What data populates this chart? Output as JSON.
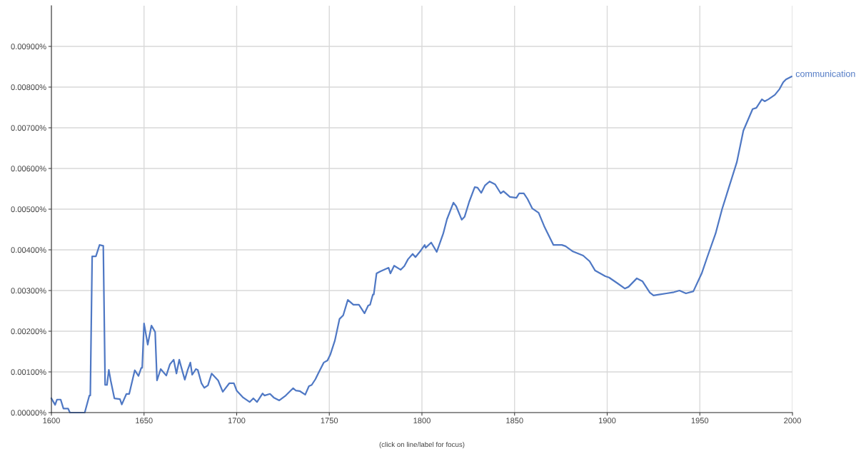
{
  "chart_data": {
    "type": "line",
    "annotations": [
      "(click on line/label for focus)"
    ],
    "xlim": [
      1600,
      2000
    ],
    "xticks": [
      1600,
      1650,
      1700,
      1750,
      1800,
      1850,
      1900,
      1950,
      2000
    ],
    "ylim": [
      0,
      0.01
    ],
    "yticks": [
      {
        "value": 0,
        "label": "0.00000%"
      },
      {
        "value": 0.001,
        "label": "0.00100%"
      },
      {
        "value": 0.002,
        "label": "0.00200%"
      },
      {
        "value": 0.003,
        "label": "0.00300%"
      },
      {
        "value": 0.004,
        "label": "0.00400%"
      },
      {
        "value": 0.005,
        "label": "0.00500%"
      },
      {
        "value": 0.006,
        "label": "0.00600%"
      },
      {
        "value": 0.007,
        "label": "0.00700%"
      },
      {
        "value": 0.008,
        "label": "0.00800%"
      },
      {
        "value": 0.009,
        "label": "0.00900%"
      }
    ],
    "grid": true,
    "legend": false,
    "marker": "none",
    "line_style": "solid",
    "series": [
      {
        "name": "communication",
        "color": "#4f78c4",
        "x": [
          1600,
          1602,
          1603,
          1605,
          1606.5,
          1609,
          1610,
          1618,
          1620.5,
          1621,
          1622,
          1624,
          1626,
          1628,
          1629,
          1630,
          1631,
          1632,
          1634,
          1637,
          1638,
          1640.5,
          1642,
          1645,
          1647,
          1648.5,
          1649,
          1650,
          1652,
          1654,
          1656,
          1657,
          1659,
          1662,
          1664,
          1666,
          1667.5,
          1669,
          1670.5,
          1672,
          1673.5,
          1675,
          1676,
          1678,
          1679,
          1681,
          1682.5,
          1684.5,
          1686.5,
          1690,
          1692.5,
          1696,
          1698.5,
          1700,
          1703.5,
          1707,
          1709,
          1711,
          1714,
          1715,
          1718,
          1720,
          1723,
          1726.5,
          1730.5,
          1732,
          1734,
          1737,
          1739,
          1740.5,
          1742.5,
          1744,
          1747,
          1749,
          1750.5,
          1753,
          1755.5,
          1757.5,
          1760,
          1763,
          1766,
          1769,
          1771,
          1772,
          1773.5,
          1774,
          1775.5,
          1777.5,
          1782,
          1783,
          1785,
          1788.5,
          1790.5,
          1792.5,
          1795,
          1796.5,
          1799,
          1801.5,
          1802,
          1805,
          1808,
          1811.5,
          1813.5,
          1817,
          1818.5,
          1821.5,
          1823,
          1825.5,
          1828.5,
          1830,
          1832,
          1834,
          1836.5,
          1839.5,
          1842.5,
          1844,
          1847.5,
          1851,
          1852.5,
          1855,
          1857,
          1859.5,
          1863,
          1866,
          1871,
          1875.5,
          1877.5,
          1881.5,
          1887,
          1890.5,
          1893.5,
          1899,
          1901,
          1905.5,
          1909.5,
          1911.5,
          1916,
          1919,
          1923,
          1925,
          1928,
          1932,
          1936,
          1939,
          1942.5,
          1946.5,
          1951,
          1954,
          1958.5,
          1962,
          1966,
          1970,
          1973.5,
          1978.5,
          1980.5,
          1983.5,
          1985,
          1987,
          1990.5,
          1993,
          1995,
          1996.5,
          1999.5
        ],
        "values": [
          0.00035,
          0.00019,
          0.00032,
          0.00032,
          0.0001,
          0.0001,
          0,
          0,
          0.00042,
          0.00042,
          0.00384,
          0.00384,
          0.00412,
          0.0041,
          0.00068,
          0.00068,
          0.00105,
          0.00079,
          0.00035,
          0.00033,
          0.0002,
          0.00046,
          0.00046,
          0.00104,
          0.0009,
          0.0011,
          0.0011,
          0.00219,
          0.00167,
          0.00214,
          0.00198,
          0.00079,
          0.00107,
          0.00091,
          0.00119,
          0.0013,
          0.00096,
          0.0013,
          0.00105,
          0.00081,
          0.00104,
          0.00123,
          0.00093,
          0.00107,
          0.00105,
          0.00072,
          0.00061,
          0.00067,
          0.00096,
          0.00079,
          0.00051,
          0.00072,
          0.00072,
          0.00054,
          0.00037,
          0.00026,
          0.00035,
          0.00026,
          0.00047,
          0.00042,
          0.00046,
          0.00037,
          0.0003,
          0.00042,
          0.0006,
          0.00054,
          0.00053,
          0.00044,
          0.00065,
          0.00068,
          0.00082,
          0.00096,
          0.00123,
          0.00128,
          0.00142,
          0.00177,
          0.0023,
          0.00239,
          0.00277,
          0.00265,
          0.00265,
          0.00244,
          0.00263,
          0.00265,
          0.0029,
          0.0029,
          0.00342,
          0.00347,
          0.00356,
          0.00342,
          0.00361,
          0.00351,
          0.0036,
          0.00377,
          0.0039,
          0.00382,
          0.00396,
          0.00412,
          0.00405,
          0.00418,
          0.00395,
          0.0044,
          0.00475,
          0.00516,
          0.00507,
          0.00474,
          0.00481,
          0.00518,
          0.00554,
          0.00553,
          0.0054,
          0.00558,
          0.00568,
          0.00561,
          0.00539,
          0.00544,
          0.0053,
          0.00528,
          0.00539,
          0.00539,
          0.00525,
          0.00502,
          0.00491,
          0.00458,
          0.00412,
          0.00412,
          0.00409,
          0.00396,
          0.00386,
          0.00372,
          0.00349,
          0.00335,
          0.00332,
          0.00318,
          0.00305,
          0.00309,
          0.0033,
          0.00323,
          0.00295,
          0.00288,
          0.0029,
          0.00293,
          0.00296,
          0.003,
          0.00293,
          0.00298,
          0.00342,
          0.00382,
          0.0044,
          0.005,
          0.00558,
          0.00616,
          0.00693,
          0.00746,
          0.00749,
          0.0077,
          0.00765,
          0.0077,
          0.00781,
          0.00795,
          0.00812,
          0.00819,
          0.00826
        ]
      }
    ]
  }
}
